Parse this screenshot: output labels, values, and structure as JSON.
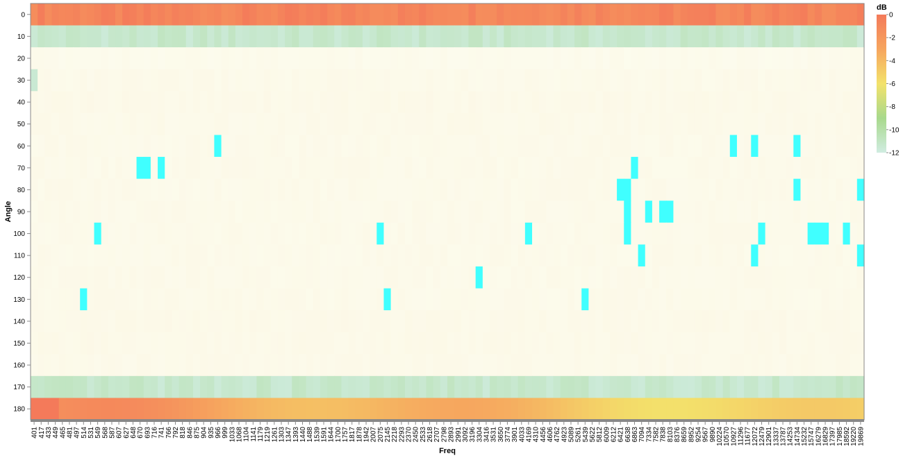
{
  "chart_data": {
    "type": "heatmap",
    "xlabel": "Freq",
    "ylabel": "Angle",
    "angles": [
      0,
      10,
      20,
      30,
      40,
      50,
      60,
      70,
      80,
      90,
      100,
      110,
      120,
      130,
      140,
      150,
      160,
      170,
      180
    ],
    "freq_ticks": [
      401,
      417,
      433,
      449,
      465,
      481,
      497,
      514,
      531,
      549,
      568,
      587,
      607,
      627,
      648,
      670,
      693,
      716,
      741,
      766,
      792,
      818,
      846,
      875,
      904,
      935,
      966,
      999,
      1033,
      1068,
      1104,
      1141,
      1179,
      1219,
      1261,
      1303,
      1347,
      1393,
      1440,
      1488,
      1539,
      1591,
      1644,
      1700,
      1757,
      1817,
      1878,
      1942,
      2007,
      2075,
      2145,
      2218,
      2293,
      2370,
      2450,
      2533,
      2618,
      2707,
      2798,
      2893,
      2991,
      3092,
      3196,
      3304,
      3416,
      3531,
      3650,
      3774,
      3901,
      4033,
      4169,
      4310,
      4456,
      4606,
      4762,
      4923,
      5089,
      5261,
      5439,
      5622,
      5812,
      6009,
      6212,
      6421,
      6638,
      6863,
      7094,
      7334,
      7582,
      7838,
      8103,
      8376,
      8659,
      8952,
      9254,
      9567,
      9890,
      10224,
      10570,
      10927,
      11296,
      11677,
      12072,
      12479,
      12901,
      13337,
      13787,
      14253,
      14734,
      15232,
      15747,
      16279,
      16829,
      17397,
      17985,
      18592,
      19220,
      19869
    ],
    "legend": {
      "title": "dB",
      "ticks": [
        0,
        -2,
        -4,
        -6,
        -8,
        -10,
        -12
      ],
      "domain": [
        -12,
        0
      ],
      "colors": [
        "#d0ece1",
        "#a8d98c",
        "#f3e26b",
        "#f6a55e",
        "#f47a5a"
      ],
      "placement": "right"
    },
    "rows": [
      {
        "angle": 0,
        "base": -0.5,
        "drift": 0.0,
        "spikes": []
      },
      {
        "angle": 10,
        "base": -11.3,
        "drift": 0.0,
        "spikes": []
      },
      {
        "angle": 20,
        "base": -12.6,
        "drift": 0.0,
        "spikes": []
      },
      {
        "angle": 30,
        "base": -13.0,
        "drift": 0.0,
        "spikes": [
          {
            "f": 401,
            "db": -11.5
          }
        ]
      },
      {
        "angle": 40,
        "base": -13.2,
        "drift": 0.0,
        "spikes": []
      },
      {
        "angle": 50,
        "base": -13.1,
        "drift": 0.0,
        "spikes": []
      },
      {
        "angle": 60,
        "base": -13.0,
        "drift": 0.0,
        "spikes": [
          {
            "f": 966,
            "db": -16
          },
          {
            "f": 10927,
            "db": -22
          },
          {
            "f": 12072,
            "db": -22
          },
          {
            "f": 14734,
            "db": -22
          }
        ]
      },
      {
        "angle": 70,
        "base": -13.0,
        "drift": 0.0,
        "spikes": [
          {
            "f": 670,
            "db": -22
          },
          {
            "f": 693,
            "db": -22
          },
          {
            "f": 741,
            "db": -18
          },
          {
            "f": 6863,
            "db": -20
          }
        ]
      },
      {
        "angle": 80,
        "base": -13.0,
        "drift": 0.0,
        "spikes": [
          {
            "f": 6421,
            "db": -22
          },
          {
            "f": 6638,
            "db": -22
          },
          {
            "f": 14734,
            "db": -22
          },
          {
            "f": 19869,
            "db": -15
          }
        ]
      },
      {
        "angle": 90,
        "base": -13.0,
        "drift": 0.0,
        "spikes": [
          {
            "f": 6638,
            "db": -22
          },
          {
            "f": 7334,
            "db": -22
          },
          {
            "f": 7838,
            "db": -22
          },
          {
            "f": 8103,
            "db": -20
          }
        ]
      },
      {
        "angle": 100,
        "base": -13.0,
        "drift": 0.0,
        "spikes": [
          {
            "f": 549,
            "db": -22
          },
          {
            "f": 2075,
            "db": -16
          },
          {
            "f": 4169,
            "db": -22
          },
          {
            "f": 6638,
            "db": -20
          },
          {
            "f": 12479,
            "db": -22
          },
          {
            "f": 15747,
            "db": -22
          },
          {
            "f": 16279,
            "db": -22
          },
          {
            "f": 16829,
            "db": -22
          },
          {
            "f": 18592,
            "db": -14
          }
        ]
      },
      {
        "angle": 110,
        "base": -13.0,
        "drift": 0.0,
        "spikes": [
          {
            "f": 7094,
            "db": -20
          },
          {
            "f": 12072,
            "db": -22
          },
          {
            "f": 19869,
            "db": -20
          }
        ]
      },
      {
        "angle": 120,
        "base": -13.0,
        "drift": 0.0,
        "spikes": [
          {
            "f": 3304,
            "db": -22
          }
        ]
      },
      {
        "angle": 130,
        "base": -13.0,
        "drift": 0.0,
        "spikes": [
          {
            "f": 514,
            "db": -16
          },
          {
            "f": 2145,
            "db": -22
          },
          {
            "f": 5439,
            "db": -22
          }
        ]
      },
      {
        "angle": 140,
        "base": -13.2,
        "drift": 0.0,
        "spikes": []
      },
      {
        "angle": 150,
        "base": -13.2,
        "drift": 0.0,
        "spikes": []
      },
      {
        "angle": 160,
        "base": -13.1,
        "drift": 0.0,
        "spikes": []
      },
      {
        "angle": 170,
        "base": -11.3,
        "drift": 0.0,
        "spikes": []
      },
      {
        "angle": 180,
        "base": -1.2,
        "drift": -3.2,
        "spikes": [
          {
            "f": 401,
            "db": 0
          },
          {
            "f": 417,
            "db": 0
          },
          {
            "f": 433,
            "db": 0
          },
          {
            "f": 449,
            "db": 0
          }
        ]
      }
    ]
  }
}
